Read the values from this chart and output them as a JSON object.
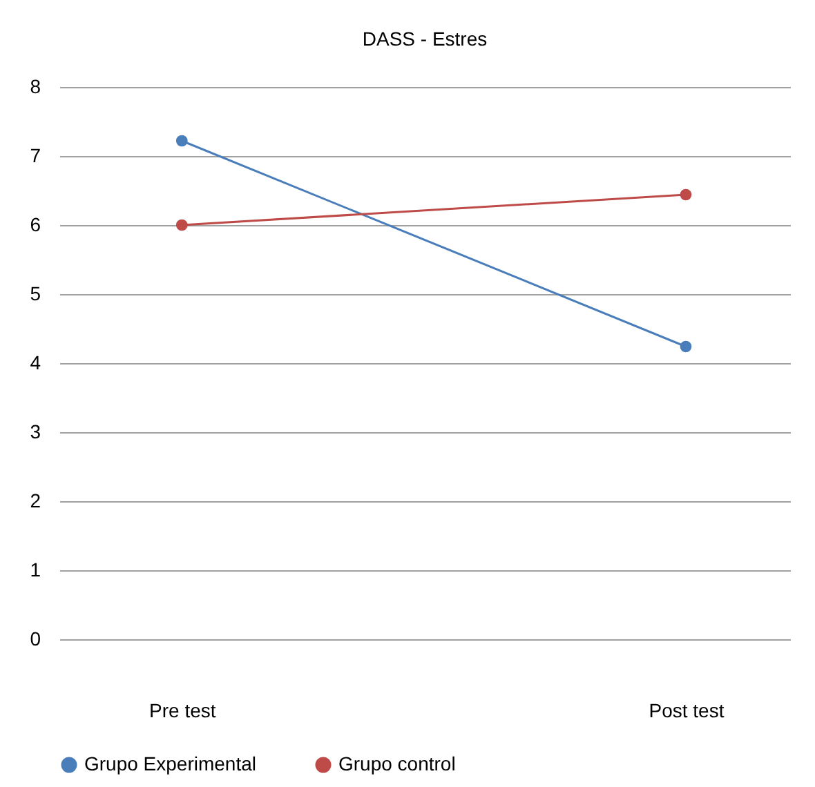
{
  "chart_data": {
    "type": "line",
    "title": "DASS - Estres",
    "categories": [
      "Pre test",
      "Post test"
    ],
    "series": [
      {
        "name": "Grupo Experimental",
        "color": "#4a7ebb",
        "values": [
          7.22,
          4.24
        ]
      },
      {
        "name": "Grupo control",
        "color": "#be4b48",
        "values": [
          6.0,
          6.44
        ]
      }
    ],
    "ylim": [
      0,
      8
    ],
    "yticks": [
      0,
      1,
      2,
      3,
      4,
      5,
      6,
      7,
      8
    ],
    "grid": "y",
    "legend": "bottom",
    "marker": "circle",
    "line_style": "solid"
  }
}
